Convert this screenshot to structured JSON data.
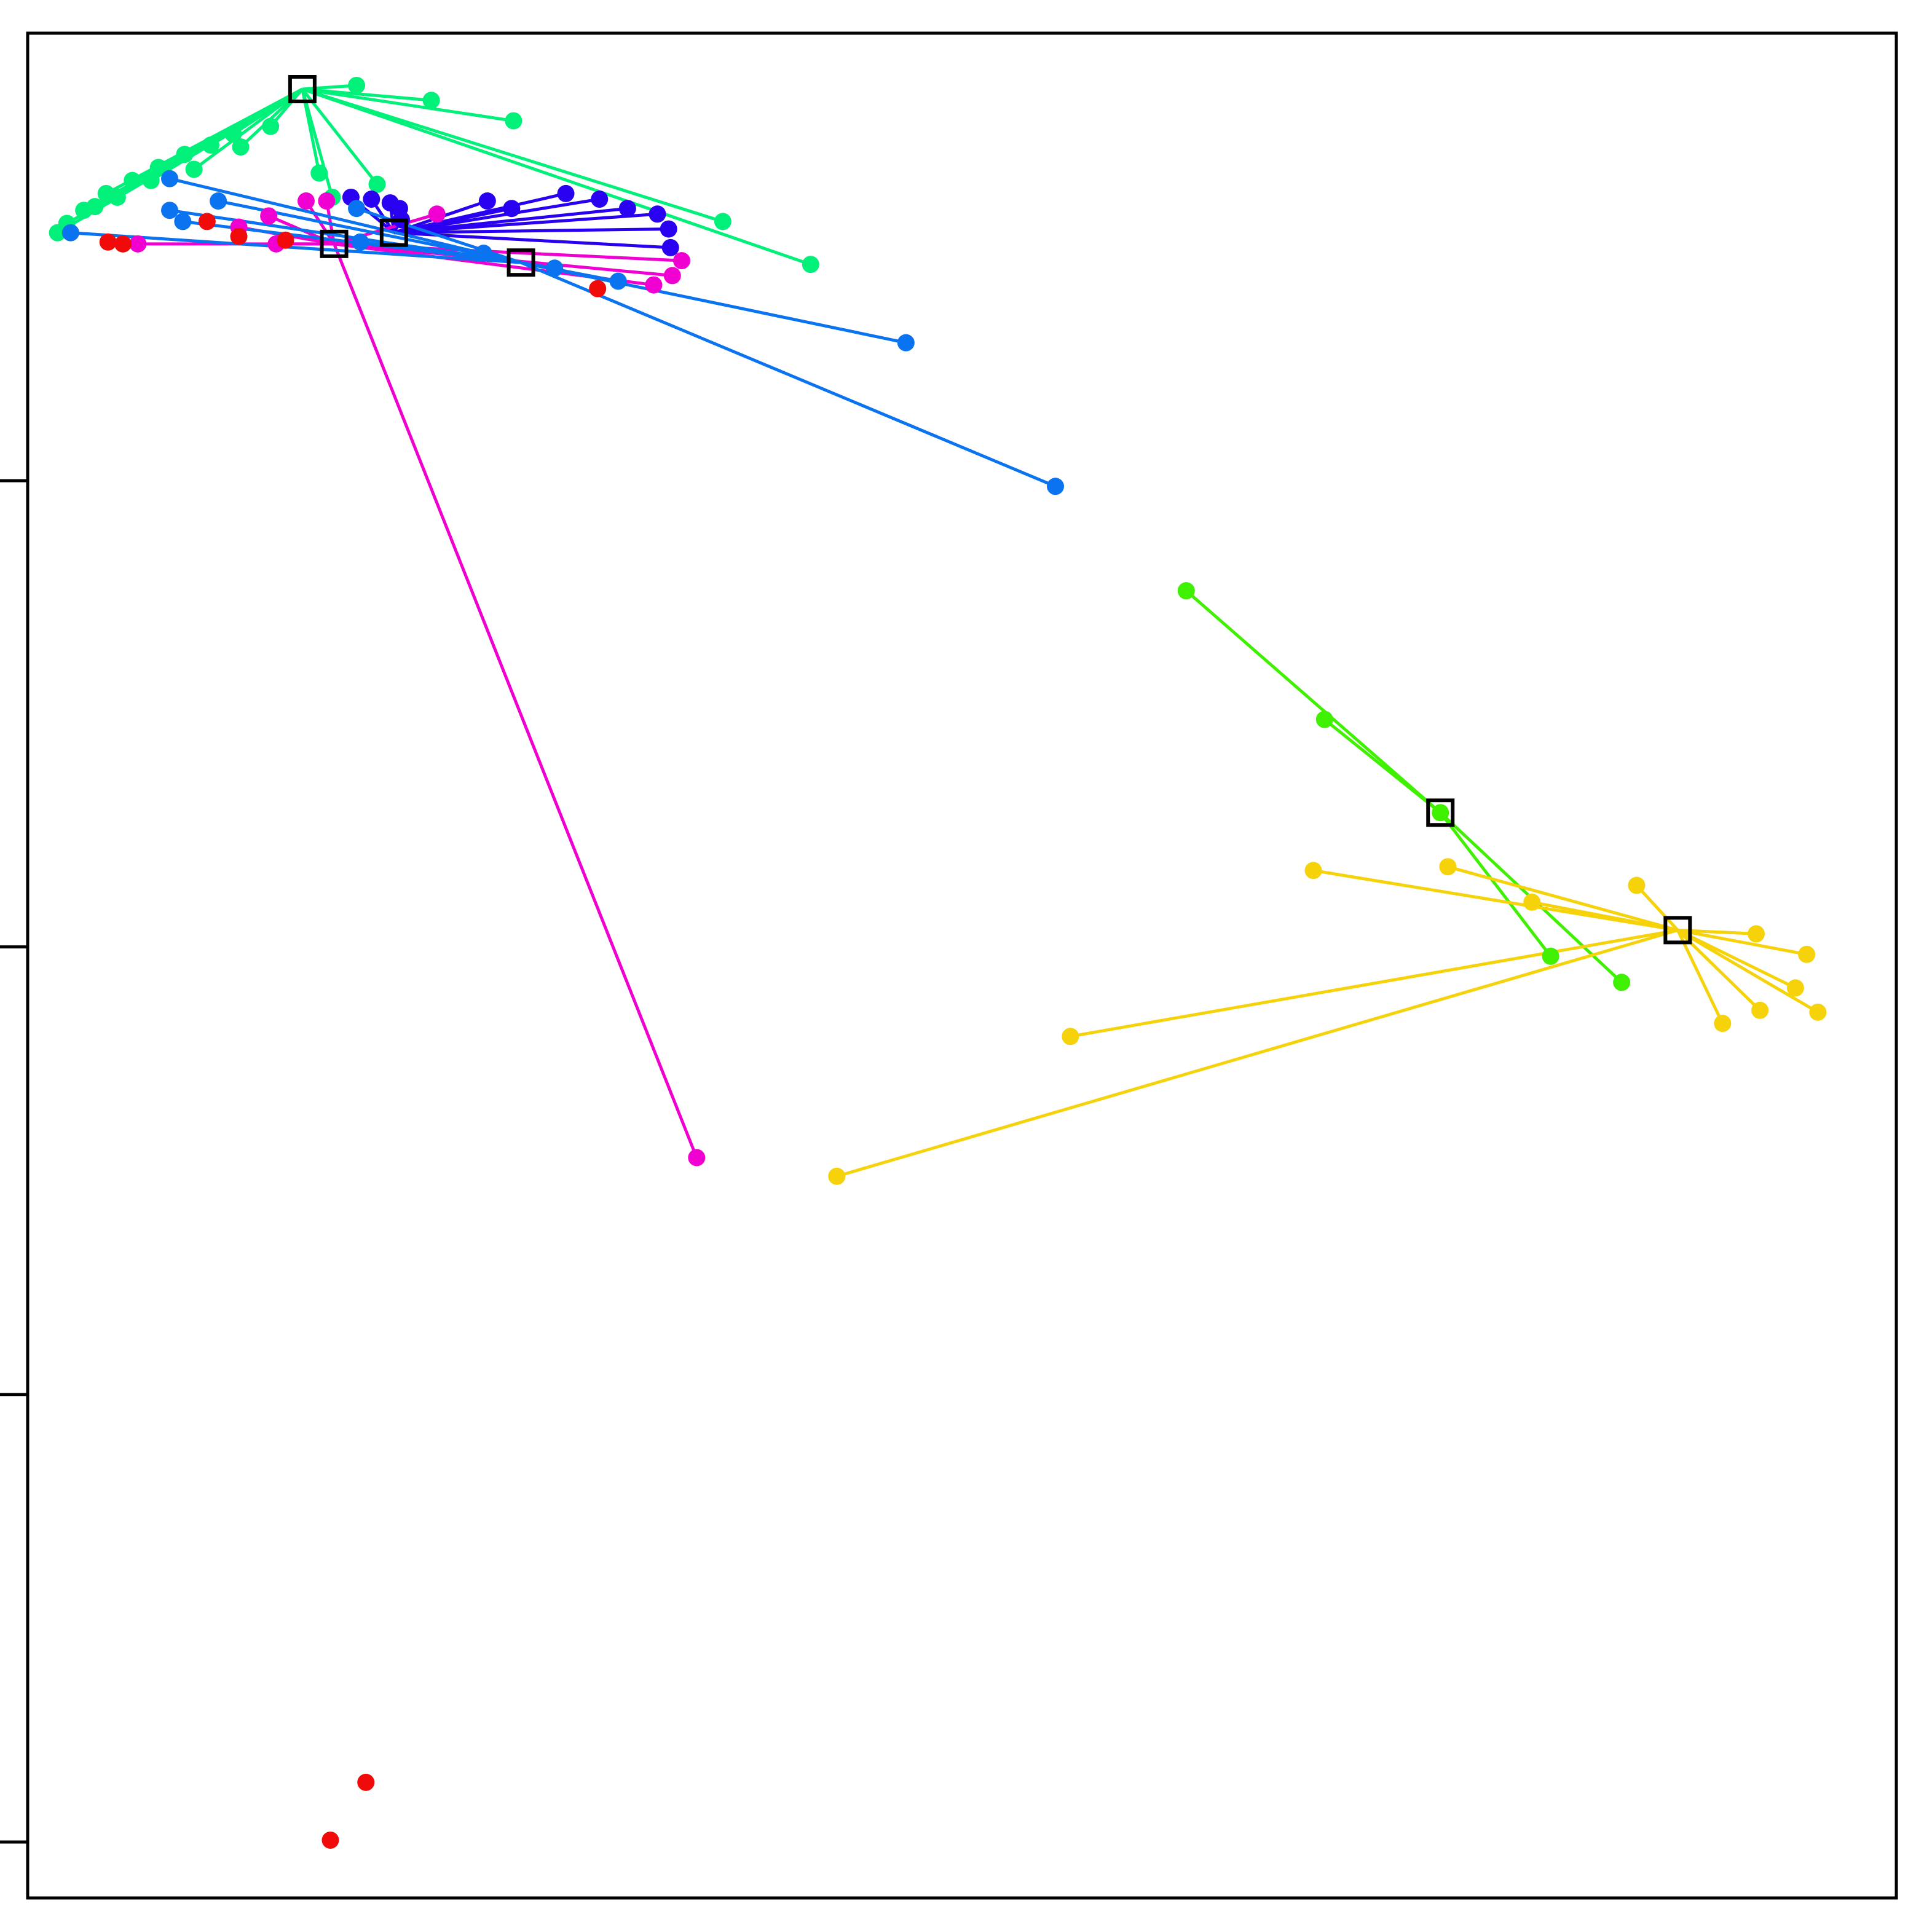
{
  "chart_data": {
    "type": "scatter",
    "title": "",
    "xlabel": "",
    "ylabel": "",
    "xlim": [
      0,
      100
    ],
    "ylim": [
      0,
      100
    ],
    "y_ticks": [
      3,
      27,
      51,
      76
    ],
    "grid": false,
    "legend": "none",
    "marker": "filled-circle",
    "centroid_marker": "open-square",
    "segments_to_centroid": true,
    "clusters": [
      {
        "color": "#00F07A",
        "centroid": {
          "x": 14.7,
          "y": 97
        },
        "points": [
          {
            "x": 17.6,
            "y": 97.2
          },
          {
            "x": 21.6,
            "y": 96.4
          },
          {
            "x": 26,
            "y": 95.3
          },
          {
            "x": 16.3,
            "y": 91.2
          },
          {
            "x": 37.2,
            "y": 89.9
          },
          {
            "x": 41.9,
            "y": 87.6
          },
          {
            "x": 13,
            "y": 95
          },
          {
            "x": 11,
            "y": 94.6
          },
          {
            "x": 9.8,
            "y": 94
          },
          {
            "x": 8.4,
            "y": 93.5
          },
          {
            "x": 7,
            "y": 92.8
          },
          {
            "x": 5.6,
            "y": 92.1
          },
          {
            "x": 4.2,
            "y": 91.4
          },
          {
            "x": 3,
            "y": 90.5
          },
          {
            "x": 2.1,
            "y": 89.8
          },
          {
            "x": 15.6,
            "y": 92.5
          },
          {
            "x": 18.7,
            "y": 91.9
          },
          {
            "x": 11.4,
            "y": 93.9
          },
          {
            "x": 8.9,
            "y": 92.7
          },
          {
            "x": 6.6,
            "y": 92.1
          },
          {
            "x": 4.8,
            "y": 91.2
          },
          {
            "x": 3.6,
            "y": 90.7
          },
          {
            "x": 1.6,
            "y": 89.3
          }
        ]
      },
      {
        "color": "#2A00F0",
        "centroid": {
          "x": 19.6,
          "y": 89.3
        },
        "points": [
          {
            "x": 17.3,
            "y": 91.2
          },
          {
            "x": 18.4,
            "y": 91.1
          },
          {
            "x": 19.4,
            "y": 90.9
          },
          {
            "x": 19.9,
            "y": 90.6
          },
          {
            "x": 20,
            "y": 90
          },
          {
            "x": 24.6,
            "y": 91
          },
          {
            "x": 25.9,
            "y": 90.6
          },
          {
            "x": 28.8,
            "y": 91.4
          },
          {
            "x": 30.6,
            "y": 91.1
          },
          {
            "x": 32.1,
            "y": 90.6
          },
          {
            "x": 33.7,
            "y": 90.3
          },
          {
            "x": 34.3,
            "y": 89.5
          },
          {
            "x": 34.4,
            "y": 88.5
          }
        ]
      },
      {
        "color": "#F000D0",
        "centroid": {
          "x": 16.4,
          "y": 88.7
        },
        "points": [
          {
            "x": 14.9,
            "y": 91
          },
          {
            "x": 16,
            "y": 91
          },
          {
            "x": 21.9,
            "y": 90.3
          },
          {
            "x": 12.9,
            "y": 90.2
          },
          {
            "x": 11.3,
            "y": 89.6
          },
          {
            "x": 13.3,
            "y": 88.7
          },
          {
            "x": 5.9,
            "y": 88.7
          },
          {
            "x": 35,
            "y": 87.8
          },
          {
            "x": 34.5,
            "y": 87
          },
          {
            "x": 33.5,
            "y": 86.5
          },
          {
            "x": 35.8,
            "y": 39.7
          }
        ]
      },
      {
        "color": "#0A73F0",
        "centroid": {
          "x": 26.4,
          "y": 87.7
        },
        "points": [
          {
            "x": 7.6,
            "y": 92.2
          },
          {
            "x": 10.2,
            "y": 91
          },
          {
            "x": 7.6,
            "y": 90.5
          },
          {
            "x": 8.3,
            "y": 89.9
          },
          {
            "x": 17.6,
            "y": 90.6
          },
          {
            "x": 2.3,
            "y": 89.3
          },
          {
            "x": 17.8,
            "y": 88.8
          },
          {
            "x": 24.4,
            "y": 88.2
          },
          {
            "x": 28.2,
            "y": 87.4
          },
          {
            "x": 31.6,
            "y": 86.7
          },
          {
            "x": 47,
            "y": 83.4
          },
          {
            "x": 55,
            "y": 75.7
          }
        ]
      },
      {
        "color": "#F00A0A",
        "centroid": null,
        "points": [
          {
            "x": 4.3,
            "y": 88.8
          },
          {
            "x": 5.1,
            "y": 88.7
          },
          {
            "x": 9.6,
            "y": 89.9
          },
          {
            "x": 11.3,
            "y": 89.1
          },
          {
            "x": 13.8,
            "y": 88.9
          },
          {
            "x": 30.5,
            "y": 86.3
          },
          {
            "x": 18.1,
            "y": 6.2
          },
          {
            "x": 16.2,
            "y": 3.1
          }
        ]
      },
      {
        "color": "#3FF000",
        "centroid": {
          "x": 75.6,
          "y": 58.2
        },
        "points": [
          {
            "x": 62,
            "y": 70.1
          },
          {
            "x": 69.4,
            "y": 63.2
          },
          {
            "x": 75.6,
            "y": 58.2
          },
          {
            "x": 81.5,
            "y": 50.5
          },
          {
            "x": 85.3,
            "y": 49.1
          }
        ]
      },
      {
        "color": "#F5D20A",
        "centroid": {
          "x": 88.3,
          "y": 51.9
        },
        "points": [
          {
            "x": 68.8,
            "y": 55.1
          },
          {
            "x": 76,
            "y": 55.3
          },
          {
            "x": 80.5,
            "y": 53.4
          },
          {
            "x": 86.1,
            "y": 54.3
          },
          {
            "x": 92.5,
            "y": 51.7
          },
          {
            "x": 95.2,
            "y": 50.6
          },
          {
            "x": 94.6,
            "y": 48.8
          },
          {
            "x": 95.8,
            "y": 47.5
          },
          {
            "x": 92.7,
            "y": 47.6
          },
          {
            "x": 90.7,
            "y": 46.9
          },
          {
            "x": 55.8,
            "y": 46.2
          },
          {
            "x": 43.3,
            "y": 38.7
          }
        ]
      }
    ]
  }
}
